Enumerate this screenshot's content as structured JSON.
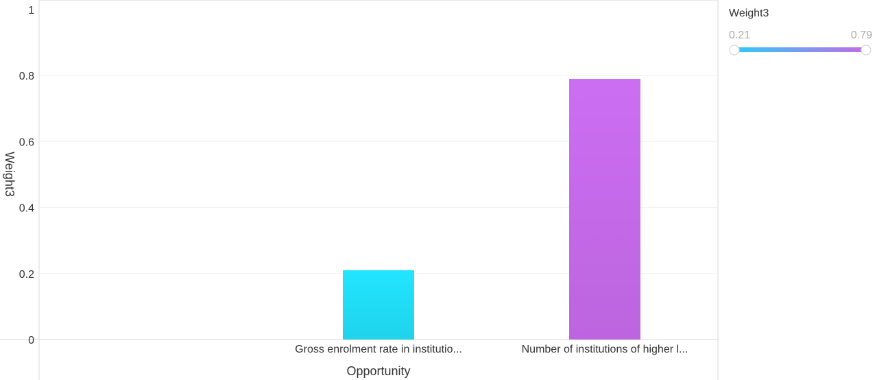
{
  "chart_data": {
    "type": "bar",
    "categories": [
      "Gross enrolment rate in institutio...",
      "Number of institutions of higher l..."
    ],
    "values": [
      0.21,
      0.79
    ],
    "xlabel": "Opportunity",
    "ylabel": "Weight3",
    "ylim": [
      0,
      1
    ],
    "yticks": [
      "0",
      "0.2",
      "0.4",
      "0.6",
      "0.8",
      "1"
    ],
    "grid": true,
    "legend": {
      "title": "Weight3",
      "min_label": "0.21",
      "max_label": "0.79",
      "position": "right"
    },
    "colors": {
      "low": "#22e5ff",
      "high": "#cc6ef2"
    }
  }
}
